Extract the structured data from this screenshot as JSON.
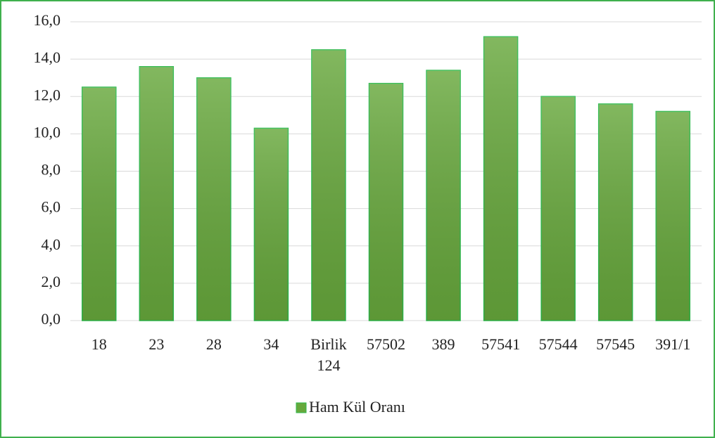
{
  "chart_data": {
    "type": "bar",
    "categories": [
      "18",
      "23",
      "28",
      "34",
      "Birlik 124",
      "57502",
      "389",
      "57541",
      "57544",
      "57545",
      "391/1"
    ],
    "series": [
      {
        "name": "Ham Kül Oranı",
        "color": "#67a83c",
        "values": [
          12.5,
          13.6,
          13.0,
          10.3,
          14.5,
          12.7,
          13.4,
          15.2,
          12.0,
          11.6,
          11.2
        ]
      }
    ],
    "ylim": [
      0,
      16
    ],
    "yticks": [
      {
        "value": 0,
        "label": "0,0"
      },
      {
        "value": 2,
        "label": "2,0"
      },
      {
        "value": 4,
        "label": "4,0"
      },
      {
        "value": 6,
        "label": "6,0"
      },
      {
        "value": 8,
        "label": "8,0"
      },
      {
        "value": 10,
        "label": "10,0"
      },
      {
        "value": 12,
        "label": "12,0"
      },
      {
        "value": 14,
        "label": "14,0"
      },
      {
        "value": 16,
        "label": "16,0"
      }
    ],
    "grid": true,
    "legend": "bottom"
  }
}
